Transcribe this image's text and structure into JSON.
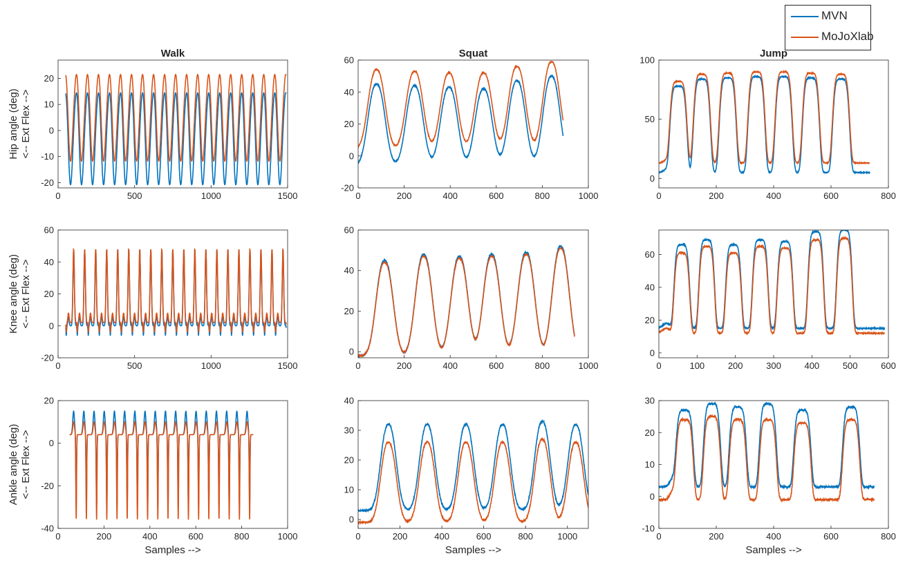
{
  "colors": {
    "MVN": "#0072BD",
    "MoJoXlab": "#D95319",
    "axis": "#262626"
  },
  "legend": {
    "placement": "top-right",
    "items": [
      "MVN",
      "MoJoXlab"
    ]
  },
  "chart_data": [
    {
      "type": "line",
      "title": "Walk",
      "ylabel1": "Hip angle (deg)",
      "ylabel2": "<-- Ext  Flex -->",
      "xlabel": "",
      "xlim": [
        0,
        1500
      ],
      "ylim": [
        -22,
        27
      ],
      "xticks": [
        0,
        500,
        1000,
        1500
      ],
      "yticks": [
        -20,
        -10,
        0,
        10,
        20
      ],
      "pattern": "walk-hip",
      "series": [
        {
          "name": "MVN",
          "cycles": 20,
          "peak": 15,
          "trough": -20
        },
        {
          "name": "MoJoXlab",
          "cycles": 20,
          "peak": 22,
          "trough": -11
        }
      ]
    },
    {
      "type": "line",
      "title": "Squat",
      "ylabel1": "",
      "ylabel2": "",
      "xlabel": "",
      "xlim": [
        0,
        1000
      ],
      "ylim": [
        -20,
        60
      ],
      "xticks": [
        0,
        200,
        400,
        600,
        800,
        1000
      ],
      "yticks": [
        -20,
        0,
        20,
        40,
        60
      ],
      "pattern": "squat-hip",
      "series": [
        {
          "name": "MVN",
          "peaks_x": [
            80,
            245,
            395,
            545,
            690,
            840
          ],
          "peaks_y": [
            45,
            44,
            43,
            42,
            47,
            50
          ],
          "trough": -6
        },
        {
          "name": "MoJoXlab",
          "peaks_x": [
            80,
            245,
            395,
            545,
            690,
            840
          ],
          "peaks_y": [
            54,
            53,
            52,
            52,
            56,
            59
          ],
          "trough": 4
        }
      ]
    },
    {
      "type": "line",
      "title": "Jump",
      "ylabel1": "",
      "ylabel2": "",
      "xlabel": "",
      "xlim": [
        0,
        800
      ],
      "ylim": [
        -8,
        100
      ],
      "xticks": [
        0,
        200,
        400,
        600,
        800
      ],
      "yticks": [
        0,
        50,
        100
      ],
      "pattern": "jump-hip",
      "series": [
        {
          "name": "MVN",
          "centers": [
            68,
            150,
            240,
            340,
            435,
            530,
            635
          ],
          "peaks_y": [
            78,
            84,
            85,
            86,
            86,
            85,
            84
          ],
          "trough": 5
        },
        {
          "name": "MoJoXlab",
          "centers": [
            68,
            150,
            240,
            340,
            435,
            530,
            635
          ],
          "peaks_y": [
            82,
            88,
            89,
            90,
            90,
            89,
            88
          ],
          "trough": 13
        }
      ]
    },
    {
      "type": "line",
      "title": "",
      "ylabel1": "Knee angle (deg)",
      "ylabel2": "<-- Ext  Flex -->",
      "xlabel": "",
      "xlim": [
        0,
        1500
      ],
      "ylim": [
        -20,
        60
      ],
      "xticks": [
        0,
        500,
        1000,
        1500
      ],
      "yticks": [
        -20,
        0,
        20,
        40,
        60
      ],
      "pattern": "walk-knee",
      "series": [
        {
          "name": "MVN",
          "cycles": 20,
          "peak": 48,
          "trough": -8
        },
        {
          "name": "MoJoXlab",
          "cycles": 20,
          "peak": 48,
          "trough": -6
        }
      ]
    },
    {
      "type": "line",
      "title": "",
      "ylabel1": "",
      "ylabel2": "",
      "xlabel": "",
      "xlim": [
        0,
        1000
      ],
      "ylim": [
        -3,
        60
      ],
      "xticks": [
        0,
        200,
        400,
        600,
        800,
        1000
      ],
      "yticks": [
        0,
        20,
        40,
        60
      ],
      "pattern": "squat-knee",
      "series": [
        {
          "name": "MVN",
          "peaks_x": [
            115,
            285,
            440,
            580,
            730,
            880
          ],
          "peaks_y": [
            45,
            48,
            47,
            48,
            49,
            52
          ],
          "trough": -2
        },
        {
          "name": "MoJoXlab",
          "peaks_x": [
            115,
            285,
            440,
            580,
            730,
            880
          ],
          "peaks_y": [
            44,
            47,
            46,
            47,
            48,
            51
          ],
          "trough": -2
        }
      ]
    },
    {
      "type": "line",
      "title": "",
      "ylabel1": "",
      "ylabel2": "",
      "xlabel": "",
      "xlim": [
        0,
        600
      ],
      "ylim": [
        -3,
        75
      ],
      "xticks": [
        0,
        100,
        200,
        300,
        400,
        500,
        600
      ],
      "yticks": [
        0,
        20,
        40,
        60
      ],
      "pattern": "jump-knee",
      "series": [
        {
          "name": "MVN",
          "centers": [
            60,
            125,
            195,
            265,
            330,
            410,
            485
          ],
          "peaks_y": [
            66,
            69,
            66,
            69,
            68,
            74,
            75
          ],
          "trough": 15
        },
        {
          "name": "MoJoXlab",
          "centers": [
            60,
            125,
            195,
            265,
            330,
            410,
            485
          ],
          "peaks_y": [
            61,
            65,
            61,
            65,
            64,
            69,
            70
          ],
          "trough": 12
        }
      ]
    },
    {
      "type": "line",
      "title": "",
      "ylabel1": "Ankle angle (deg)",
      "ylabel2": "<-- Ext  Flex -->",
      "xlabel": "Samples -->",
      "xlim": [
        0,
        1000
      ],
      "ylim": [
        -40,
        20
      ],
      "xticks": [
        0,
        200,
        400,
        600,
        800,
        1000
      ],
      "yticks": [
        -40,
        -20,
        0,
        20
      ],
      "pattern": "walk-ankle",
      "series": [
        {
          "name": "MVN",
          "cycles": 18,
          "peak": 15,
          "trough": -30
        },
        {
          "name": "MoJoXlab",
          "cycles": 18,
          "peak": 10,
          "trough": -36
        }
      ]
    },
    {
      "type": "line",
      "title": "",
      "ylabel1": "",
      "ylabel2": "",
      "xlabel": "Samples -->",
      "xlim": [
        0,
        1100
      ],
      "ylim": [
        -3,
        40
      ],
      "xticks": [
        0,
        200,
        400,
        600,
        800,
        1000
      ],
      "yticks": [
        0,
        10,
        20,
        30,
        40
      ],
      "pattern": "squat-ankle",
      "series": [
        {
          "name": "MVN",
          "peaks_x": [
            145,
            330,
            515,
            690,
            880,
            1040
          ],
          "peaks_y": [
            32,
            32,
            32,
            32,
            33,
            32
          ],
          "trough": 3
        },
        {
          "name": "MoJoXlab",
          "peaks_x": [
            145,
            330,
            515,
            690,
            880,
            1040
          ],
          "peaks_y": [
            26,
            26,
            26,
            26,
            27,
            26
          ],
          "trough": -1
        }
      ]
    },
    {
      "type": "line",
      "title": "",
      "ylabel1": "",
      "ylabel2": "",
      "xlabel": "Samples -->",
      "xlim": [
        0,
        800
      ],
      "ylim": [
        -10,
        30
      ],
      "xticks": [
        0,
        200,
        400,
        600,
        800
      ],
      "yticks": [
        -10,
        0,
        10,
        20,
        30
      ],
      "pattern": "jump-ankle",
      "series": [
        {
          "name": "MVN",
          "centers": [
            90,
            185,
            275,
            380,
            500,
            670
          ],
          "peaks_y": [
            27,
            29,
            28,
            29,
            27,
            28
          ],
          "trough": 3
        },
        {
          "name": "MoJoXlab",
          "centers": [
            90,
            185,
            275,
            380,
            500,
            670
          ],
          "peaks_y": [
            24,
            25,
            24,
            24,
            23,
            24
          ],
          "trough": -1
        }
      ]
    }
  ]
}
